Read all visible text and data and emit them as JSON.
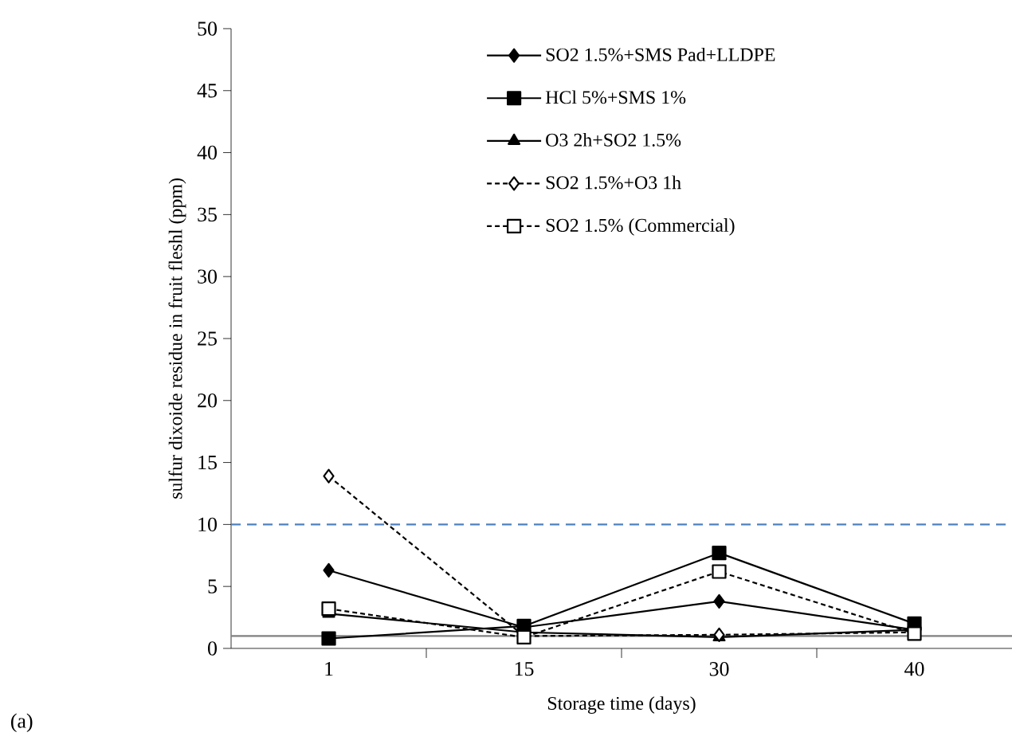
{
  "chart_data": {
    "type": "line",
    "ylabel": "sulfur dixoide residue in fruit fleshl (ppm)",
    "xlabel": "Storage time (days)",
    "categories": [
      "1",
      "15",
      "30",
      "40"
    ],
    "series": [
      {
        "name": "SO2 1.5%+SMS Pad+LLDPE",
        "color": "#000000",
        "marker": "diamond",
        "line_style": "solid",
        "values": [
          6.3,
          1.7,
          3.8,
          1.5
        ]
      },
      {
        "name": "HCl 5%+SMS 1%",
        "color": "#000000",
        "marker": "square",
        "line_style": "solid",
        "values": [
          0.8,
          1.8,
          7.7,
          2.0
        ]
      },
      {
        "name": "O3 2h+SO2 1.5%",
        "color": "#000000",
        "marker": "triangle",
        "line_style": "solid",
        "values": [
          2.8,
          1.3,
          0.9,
          1.5
        ]
      },
      {
        "name": "SO2 1.5%+O3 1h",
        "color": "#000000",
        "marker": "diamond",
        "line_style": "dashed",
        "values": [
          13.9,
          1.0,
          1.1,
          1.3
        ]
      },
      {
        "name": "SO2 1.5% (Commercial)",
        "color": "#000000",
        "marker": "square",
        "line_style": "dashed",
        "values": [
          3.2,
          0.9,
          6.2,
          1.2
        ]
      }
    ],
    "ylim": [
      0,
      50
    ],
    "yticks": [
      0,
      5,
      10,
      15,
      20,
      25,
      30,
      35,
      40,
      45,
      50
    ],
    "ref_lines": [
      {
        "axis": "y",
        "value": 10,
        "color": "#4f81bd",
        "line_style": "dashed"
      },
      {
        "axis": "y",
        "value": 1,
        "color": "#808080",
        "line_style": "solid"
      }
    ],
    "grid": false,
    "legend": "top right",
    "annotations": [
      "(a)"
    ]
  }
}
